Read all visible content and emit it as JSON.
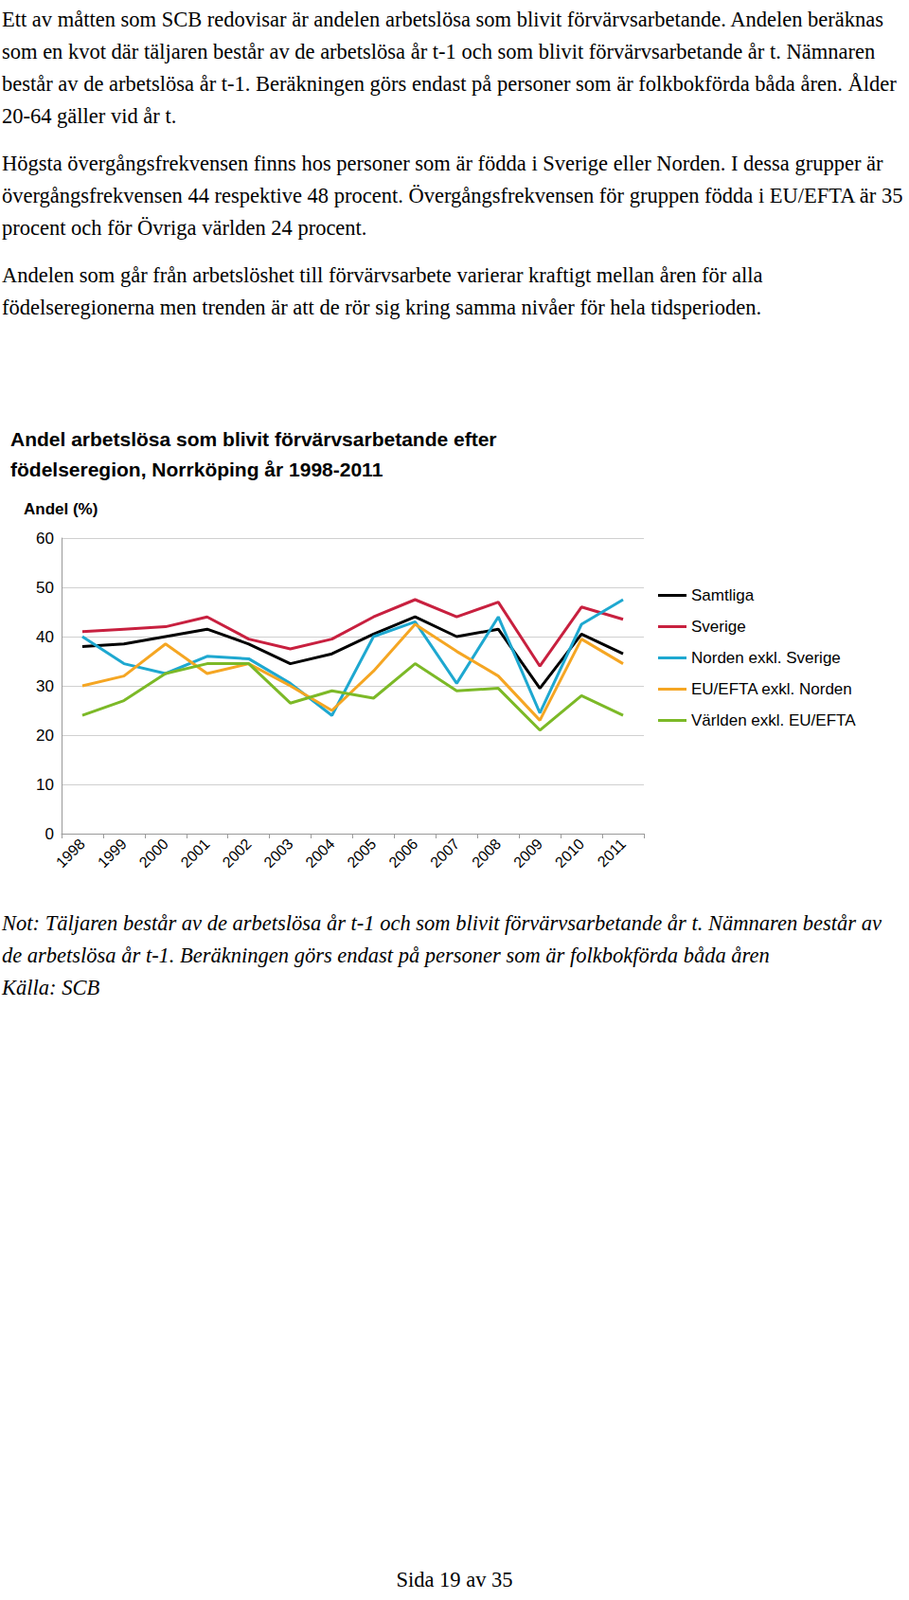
{
  "paragraphs": [
    "Ett av måtten som SCB redovisar är andelen arbetslösa som blivit förvärvsarbetande. Andelen beräknas som en kvot där täljaren består av de arbetslösa år t-1 och som blivit förvärvsarbetande år t. Nämnaren består av de arbetslösa år t-1. Beräkningen görs endast på personer som är folkbokförda båda åren. Ålder 20-64 gäller vid år t.",
    "Högsta övergångsfrekvensen finns hos personer som är födda i Sverige eller Norden. I dessa grupper är övergångsfrekvensen 44 respektive 48 procent. Övergångsfrekvensen för gruppen födda i EU/EFTA är 35 procent och för Övriga världen 24 procent.",
    "Andelen som går från arbetslöshet till förvärvsarbete varierar kraftigt mellan åren för alla födelseregionerna men trenden är att de rör sig kring samma nivåer för hela tidsperioden."
  ],
  "chart_data": {
    "type": "line",
    "title": "Andel arbetslösa som blivit förvärvsarbetande efter födelseregion, Norrköping år 1998-2011",
    "y_label": "Andel (%)",
    "categories": [
      "1998",
      "1999",
      "2000",
      "2001",
      "2002",
      "2003",
      "2004",
      "2005",
      "2006",
      "2007",
      "2008",
      "2009",
      "2010",
      "2011"
    ],
    "series": [
      {
        "name": "Samtliga",
        "color": "#000000",
        "values": [
          38,
          38.5,
          40,
          41.5,
          38.5,
          34.5,
          36.5,
          40.5,
          44,
          40,
          41.5,
          29.5,
          40.5,
          36.5
        ]
      },
      {
        "name": "Sverige",
        "color": "#c8203f",
        "values": [
          41,
          41.5,
          42,
          44,
          39.5,
          37.5,
          39.5,
          44,
          47.5,
          44,
          47,
          34,
          46,
          43.5
        ]
      },
      {
        "name": "Norden exkl. Sverige",
        "color": "#1ea8d0",
        "values": [
          40,
          34.5,
          32.5,
          36,
          35.5,
          30.5,
          24,
          40,
          43,
          30.5,
          44,
          24.5,
          42.5,
          47.5
        ]
      },
      {
        "name": "EU/EFTA exkl. Norden",
        "color": "#f5a623",
        "values": [
          30,
          32,
          38.5,
          32.5,
          34.5,
          30,
          25,
          33,
          42.5,
          37,
          32,
          23,
          39.5,
          34.5
        ]
      },
      {
        "name": "Världen exkl. EU/EFTA",
        "color": "#7cb927",
        "values": [
          24,
          27,
          32.5,
          34.5,
          34.5,
          26.5,
          29,
          27.5,
          34.5,
          29,
          29.5,
          21,
          28,
          24
        ]
      }
    ],
    "ylim": [
      0,
      60
    ],
    "yticks": [
      0,
      10,
      20,
      30,
      40,
      50,
      60
    ],
    "grid": true,
    "legend": "right"
  },
  "note": [
    "Not: Täljaren består av de arbetslösa år t-1 och som blivit förvärvsarbetande år t. Nämnaren består av de arbetslösa år t-1. Beräkningen görs endast på personer som är folkbokförda båda åren",
    "Källa: SCB"
  ],
  "page": "Sida 19 av 35"
}
